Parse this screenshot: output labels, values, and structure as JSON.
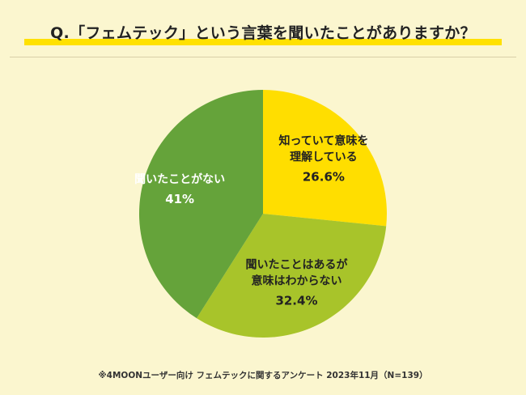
{
  "title": "Q.「フェムテック」という言葉を聞いたことがありますか？",
  "footnote": "※4MOONユーザー向け フェムテックに関するアンケート 2023年11月（N=139）",
  "colors": {
    "background": "#FBF6CF",
    "title_underline": "#FFE100"
  },
  "chart_data": {
    "type": "pie",
    "title": "Q.「フェムテック」という言葉を聞いたことがありますか？",
    "start": "12 o'clock",
    "direction": "clockwise",
    "slices": [
      {
        "label_lines": [
          "知っていて意味を",
          "理解している"
        ],
        "value": 26.6,
        "value_label": "26.6%",
        "color": "#FFDE00",
        "text_color": "#222222"
      },
      {
        "label_lines": [
          "聞いたことはあるが",
          "意味はわからない"
        ],
        "value": 32.4,
        "value_label": "32.4%",
        "color": "#A8C42A",
        "text_color": "#222222"
      },
      {
        "label_lines": [
          "聞いたことがない"
        ],
        "value": 41,
        "value_label": "41%",
        "color": "#65A33A",
        "text_color": "#FFFFFF"
      }
    ]
  }
}
